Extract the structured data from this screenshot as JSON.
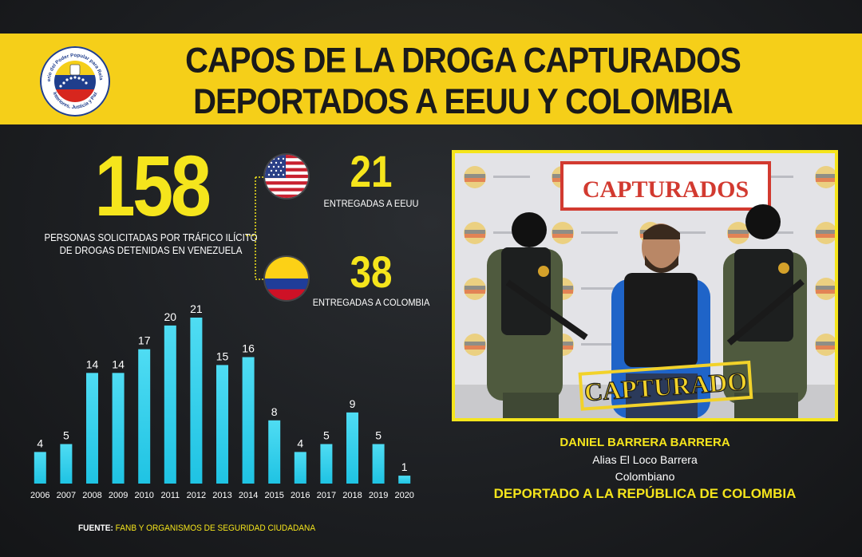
{
  "header": {
    "title_line1": "CAPOS DE LA DROGA CAPTURADOS",
    "title_line2": "DEPORTADOS A EEUU Y COLOMBIA",
    "seal_text_top": "Ministerio del Poder Popular para Relaciones",
    "seal_text_bottom": "Interiores, Justicia y Paz"
  },
  "summary": {
    "total": "158",
    "total_caption_line1": "PERSONAS SOLICITADAS POR TRÁFICO ILÍCITO",
    "total_caption_line2": "DE DROGAS DETENIDAS EN VENEZUELA",
    "usa": {
      "value": "21",
      "label": "ENTREGADAS A EEUU",
      "flag": "usa-flag-icon"
    },
    "colombia": {
      "value": "38",
      "label": "ENTREGADAS A COLOMBIA",
      "flag": "colombia-flag-icon"
    }
  },
  "chart_data": {
    "type": "bar",
    "categories": [
      "2006",
      "2007",
      "2008",
      "2009",
      "2010",
      "2011",
      "2012",
      "2013",
      "2014",
      "2015",
      "2016",
      "2017",
      "2018",
      "2019",
      "2020"
    ],
    "values": [
      4,
      5,
      14,
      14,
      17,
      20,
      21,
      15,
      16,
      8,
      4,
      5,
      9,
      5,
      1
    ],
    "ylim": [
      0,
      21
    ],
    "grid": false,
    "bar_color": "#1fc3e3"
  },
  "source": {
    "label": "FUENTE:",
    "text": "FANB Y ORGANISMOS DE SEGURIDAD CIUDADANA"
  },
  "photo": {
    "banner_text": "CAPTURADOS",
    "stamp_text": "CAPTURADO",
    "backdrop_text": "CAPTURADOS"
  },
  "caption": {
    "name": "DANIEL BARRERA BARRERA",
    "alias": "Alias El Loco Barrera",
    "nationality": "Colombiano",
    "deported": "DEPORTADO A LA REPÚBLICA DE COLOMBIA"
  },
  "colors": {
    "accent": "#f5cf19",
    "number": "#f5e51c",
    "background": "#1b1d20"
  }
}
